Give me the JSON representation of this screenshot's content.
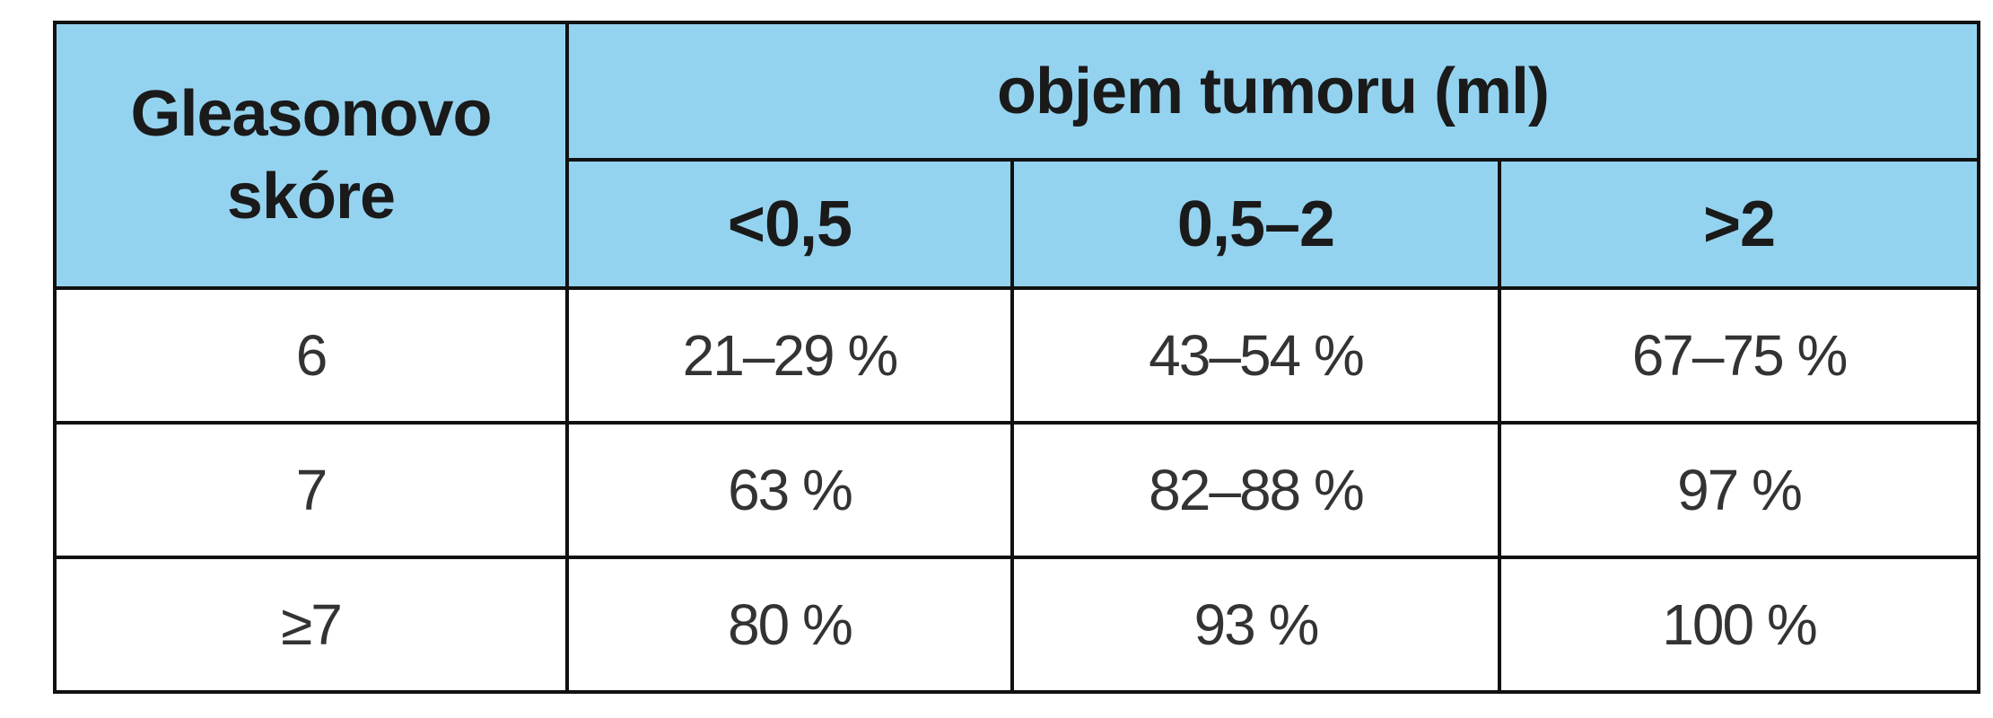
{
  "table": {
    "row_header": "Gleasonovo skóre",
    "group_header": "objem tumoru (ml)",
    "columns": [
      "<0,5",
      "0,5–2",
      ">2"
    ],
    "rows": [
      [
        "6",
        "21–29 %",
        "43–54 %",
        "67–75 %"
      ],
      [
        "7",
        "63 %",
        "82–88 %",
        "97 %"
      ],
      [
        "≥7",
        "80 %",
        "93 %",
        "100 %"
      ]
    ]
  }
}
